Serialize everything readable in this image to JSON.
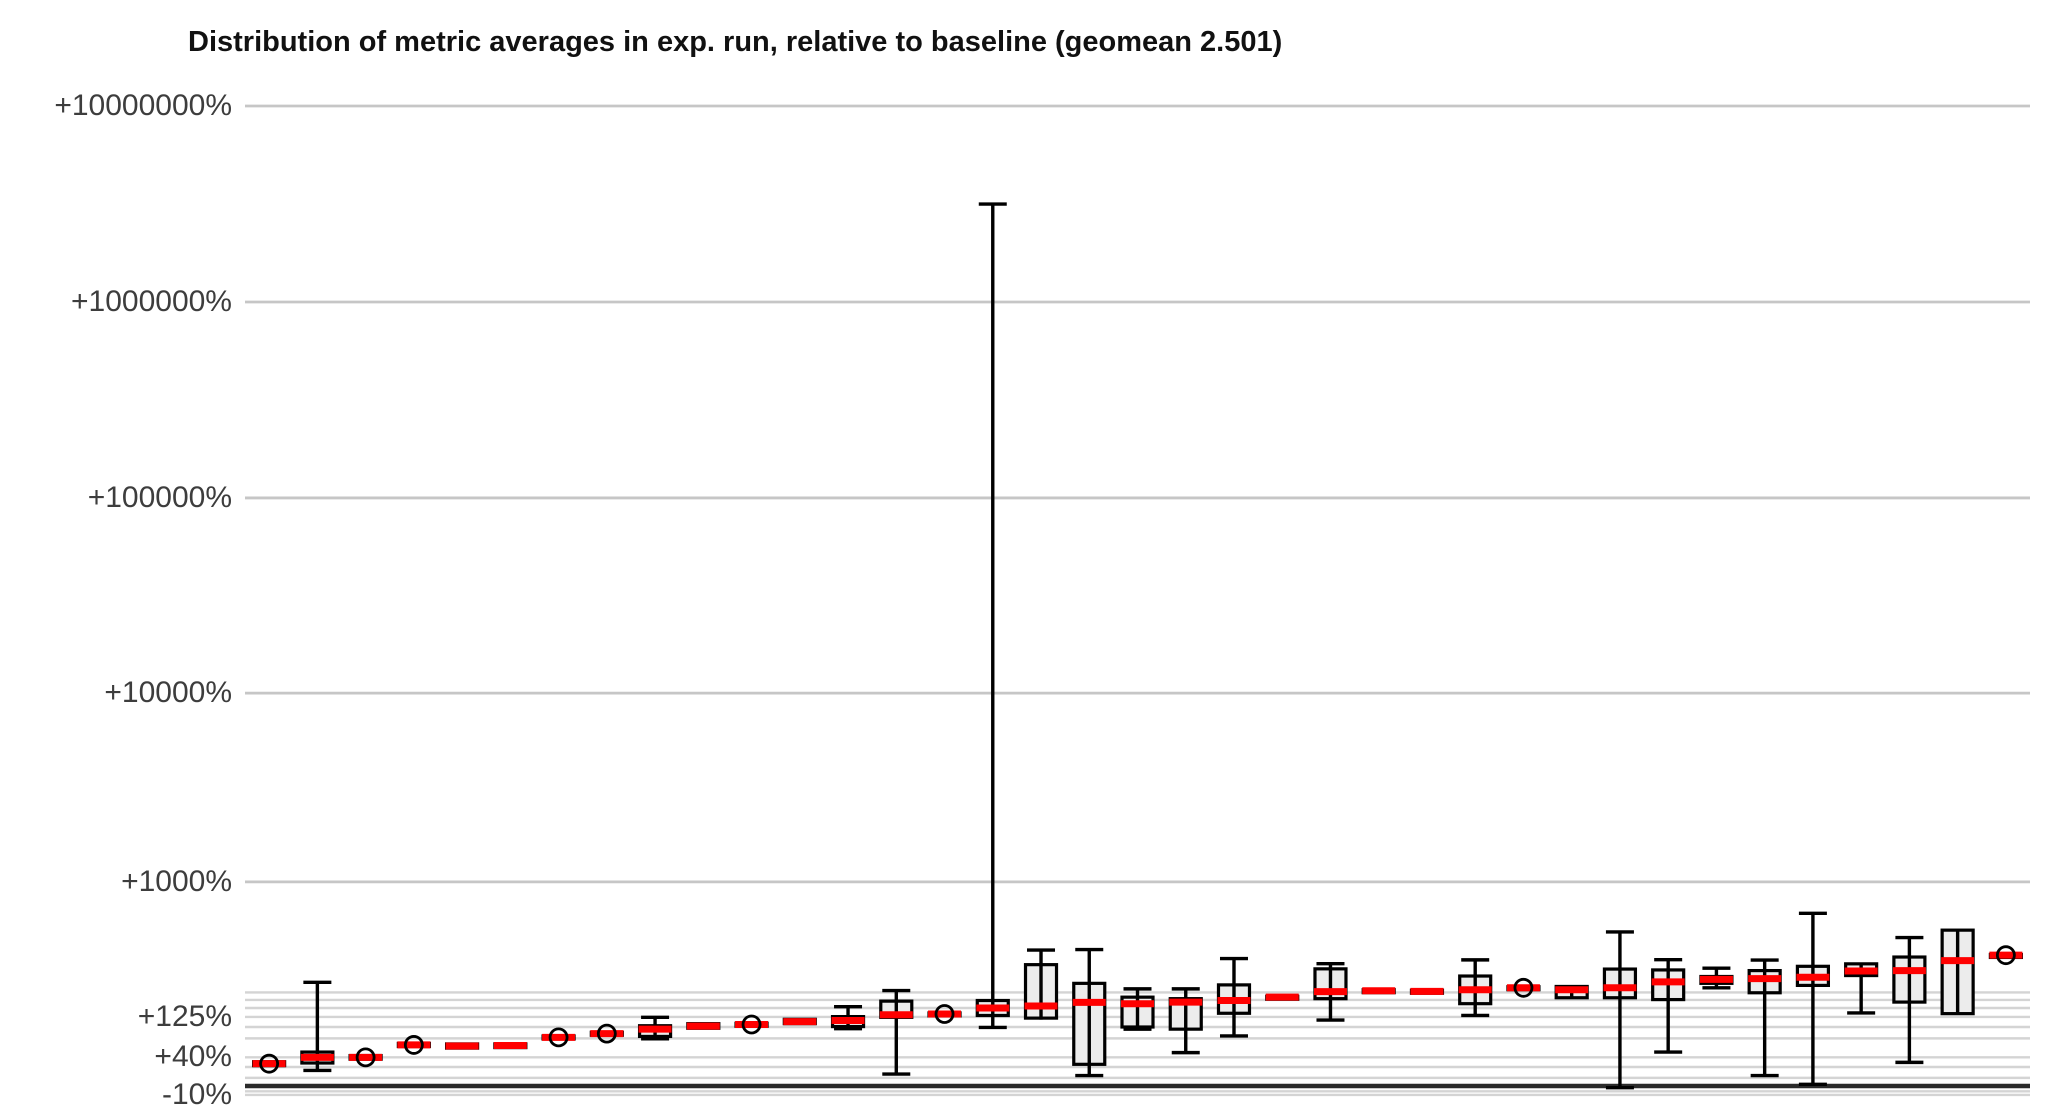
{
  "title": "Distribution of metric averages in exp. run, relative to baseline (geomean 2.501)",
  "colors": {
    "background": "#ffffff",
    "title_text": "#111111",
    "tick_text": "#3d3d3d",
    "grid_major": "#c6c6c6",
    "grid_minor": "#d4d4d4",
    "baseline_line": "#2b2b2b",
    "box_fill": "#ececec",
    "box_stroke": "#000000",
    "median_line": "#ff0000",
    "mean_circle_stroke": "#000000"
  },
  "chart_data": {
    "type": "boxplot",
    "title": "Distribution of metric averages in exp. run, relative to baseline (geomean 2.501)",
    "geomean": 2.501,
    "y_scale": "log10(1 + pct/100)",
    "ylim_pct": [
      -20,
      12000000
    ],
    "grid": true,
    "y_ticks": [
      {
        "label": "+10000000%",
        "pct": 10000000,
        "major": true
      },
      {
        "label": "+1000000%",
        "pct": 1000000,
        "major": true
      },
      {
        "label": "+100000%",
        "pct": 100000,
        "major": true
      },
      {
        "label": "+10000%",
        "pct": 10000,
        "major": true
      },
      {
        "label": "+1000%",
        "pct": 1000,
        "major": true
      },
      {
        "label": "+125%",
        "pct": 125,
        "major": false
      },
      {
        "label": "+40%",
        "pct": 40,
        "major": false
      },
      {
        "label": "-10%",
        "pct": -10,
        "major": false
      }
    ],
    "major_gridlines_pct": [
      10000000,
      1000000,
      100000,
      10000,
      1000
    ],
    "minor_gridlines_pct": [
      200,
      175,
      150,
      125,
      100,
      75,
      40,
      25,
      10,
      -6,
      -10
    ],
    "baseline_pct": 0,
    "boxes": [
      {
        "median": 30,
        "q1": 27,
        "q3": 33,
        "whisker_low": 27,
        "whisker_high": 33,
        "mean_circle": true
      },
      {
        "median": 40,
        "q1": 31,
        "q3": 49,
        "whisker_low": 20,
        "whisker_high": 238,
        "mean_circle": false
      },
      {
        "median": 40,
        "q1": 37,
        "q3": 43,
        "whisker_low": 37,
        "whisker_high": 43,
        "mean_circle": true
      },
      {
        "median": 62,
        "q1": 59,
        "q3": 65,
        "whisker_low": 59,
        "whisker_high": 65,
        "mean_circle": true
      },
      {
        "median": 60,
        "q1": 56,
        "q3": 64,
        "whisker_low": 56,
        "whisker_high": 64,
        "mean_circle": false
      },
      {
        "median": 61,
        "q1": 57,
        "q3": 64,
        "whisker_low": 57,
        "whisker_high": 64,
        "mean_circle": false
      },
      {
        "median": 77,
        "q1": 74,
        "q3": 80,
        "whisker_low": 74,
        "whisker_high": 80,
        "mean_circle": true
      },
      {
        "median": 85,
        "q1": 82,
        "q3": 88,
        "whisker_low": 82,
        "whisker_high": 88,
        "mean_circle": true
      },
      {
        "median": 95,
        "q1": 79,
        "q3": 103,
        "whisker_low": 74,
        "whisker_high": 124,
        "mean_circle": false
      },
      {
        "median": 102,
        "q1": 97,
        "q3": 108,
        "whisker_low": 97,
        "whisker_high": 108,
        "mean_circle": false
      },
      {
        "median": 106,
        "q1": 103,
        "q3": 109,
        "whisker_low": 103,
        "whisker_high": 109,
        "mean_circle": true
      },
      {
        "median": 113,
        "q1": 108,
        "q3": 119,
        "whisker_low": 108,
        "whisker_high": 119,
        "mean_circle": false
      },
      {
        "median": 116,
        "q1": 101,
        "q3": 126,
        "whisker_low": 96,
        "whisker_high": 154,
        "mean_circle": false
      },
      {
        "median": 131,
        "q1": 124,
        "q3": 171,
        "whisker_low": 15,
        "whisker_high": 207,
        "mean_circle": false
      },
      {
        "median": 133,
        "q1": 130,
        "q3": 136,
        "whisker_low": 130,
        "whisker_high": 136,
        "mean_circle": true
      },
      {
        "median": 150,
        "q1": 129,
        "q3": 173,
        "whisker_low": 99,
        "whisker_high": 3160000,
        "mean_circle": false
      },
      {
        "median": 156,
        "q1": 122,
        "q3": 316,
        "whisker_low": 118,
        "whisker_high": 394,
        "mean_circle": false
      },
      {
        "median": 167,
        "q1": 29,
        "q3": 234,
        "whisker_low": 13,
        "whisker_high": 397,
        "mean_circle": false
      },
      {
        "median": 163,
        "q1": 100,
        "q3": 184,
        "whisker_low": 95,
        "whisker_high": 213,
        "mean_circle": false
      },
      {
        "median": 168,
        "q1": 95,
        "q3": 179,
        "whisker_low": 48,
        "whisker_high": 213,
        "mean_circle": false
      },
      {
        "median": 173,
        "q1": 135,
        "q3": 228,
        "whisker_low": 80,
        "whisker_high": 347,
        "mean_circle": false
      },
      {
        "median": 184,
        "q1": 181,
        "q3": 187,
        "whisker_low": 181,
        "whisker_high": 187,
        "mean_circle": false
      },
      {
        "median": 203,
        "q1": 179,
        "q3": 296,
        "whisker_low": 117,
        "whisker_high": 321,
        "mean_circle": false
      },
      {
        "median": 206,
        "q1": 202,
        "q3": 210,
        "whisker_low": 202,
        "whisker_high": 210,
        "mean_circle": false
      },
      {
        "median": 204,
        "q1": 200,
        "q3": 208,
        "whisker_low": 200,
        "whisker_high": 208,
        "mean_circle": false
      },
      {
        "median": 210,
        "q1": 163,
        "q3": 264,
        "whisker_low": 129,
        "whisker_high": 340,
        "mean_circle": false
      },
      {
        "median": 217,
        "q1": 213,
        "q3": 221,
        "whisker_low": 213,
        "whisker_high": 221,
        "mean_circle": true
      },
      {
        "median": 210,
        "q1": 182,
        "q3": 222,
        "whisker_low": 182,
        "whisker_high": 222,
        "mean_circle": false
      },
      {
        "median": 217,
        "q1": 182,
        "q3": 295,
        "whisker_low": -2,
        "whisker_high": 511,
        "mean_circle": false
      },
      {
        "median": 240,
        "q1": 176,
        "q3": 291,
        "whisker_low": 49,
        "whisker_high": 341,
        "mean_circle": false
      },
      {
        "median": 250,
        "q1": 234,
        "q3": 262,
        "whisker_low": 217,
        "whisker_high": 299,
        "mean_circle": false
      },
      {
        "median": 253,
        "q1": 199,
        "q3": 288,
        "whisker_low": 13,
        "whisker_high": 339,
        "mean_circle": false
      },
      {
        "median": 259,
        "q1": 226,
        "q3": 308,
        "whisker_low": 2,
        "whisker_high": 660,
        "mean_circle": false
      },
      {
        "median": 286,
        "q1": 266,
        "q3": 320,
        "whisker_low": 136,
        "whisker_high": 320,
        "mean_circle": false
      },
      {
        "median": 288,
        "q1": 168,
        "q3": 355,
        "whisker_low": 32,
        "whisker_high": 472,
        "mean_circle": false
      },
      {
        "median": 336,
        "q1": 134,
        "q3": 524,
        "whisker_low": 134,
        "whisker_high": 524,
        "mean_circle": false
      },
      {
        "median": 365,
        "q1": 361,
        "q3": 369,
        "whisker_low": 361,
        "whisker_high": 369,
        "mean_circle": true
      }
    ]
  }
}
